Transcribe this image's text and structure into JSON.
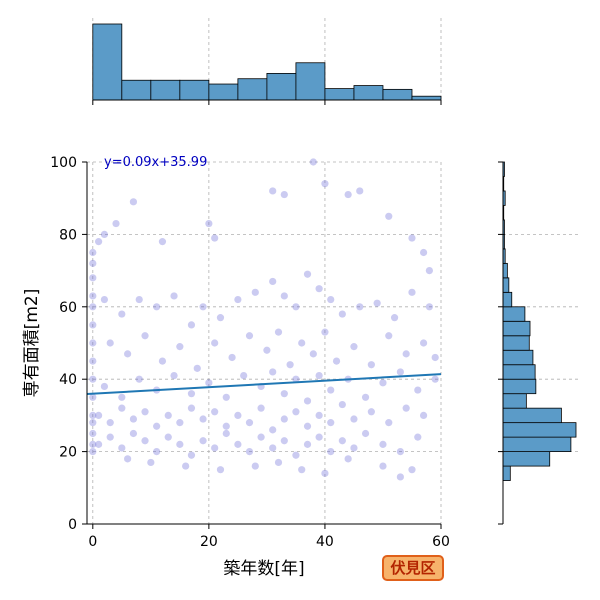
{
  "chart_data": {
    "type": "scatter",
    "xlabel": "築年数[年]",
    "ylabel": "専有面積[m2]",
    "xlim": [
      -1,
      60
    ],
    "ylim": [
      0,
      100
    ],
    "x_ticks": [
      0,
      20,
      40,
      60
    ],
    "y_ticks": [
      0,
      20,
      40,
      60,
      80,
      100
    ],
    "grid": true,
    "point_color": "#6a6ad8",
    "regression": {
      "label": "y=0.09x+35.99",
      "slope": 0.09,
      "intercept": 35.99,
      "color": "#1f77b4",
      "label_color": "#0000c0"
    },
    "marginal_x_hist": {
      "bin_edges": [
        0,
        5,
        10,
        15,
        20,
        25,
        30,
        35,
        40,
        45,
        50,
        55,
        60
      ],
      "relative_heights": [
        1.0,
        0.26,
        0.26,
        0.26,
        0.21,
        0.28,
        0.35,
        0.49,
        0.15,
        0.19,
        0.14,
        0.05
      ],
      "color": "#5b9bc8"
    },
    "marginal_y_hist": {
      "bin_edges": [
        12,
        16,
        20,
        24,
        28,
        32,
        36,
        40,
        44,
        48,
        52,
        56,
        60,
        64,
        68,
        72,
        76,
        80,
        84,
        88,
        92,
        96,
        100
      ],
      "relative_widths": [
        0.1,
        0.64,
        0.93,
        1.0,
        0.8,
        0.32,
        0.45,
        0.44,
        0.41,
        0.36,
        0.37,
        0.3,
        0.12,
        0.08,
        0.06,
        0.03,
        0.02,
        0.02,
        0.01,
        0.03,
        0.01,
        0.02
      ],
      "color": "#5b9bc8"
    },
    "points_sample": [
      [
        0,
        20
      ],
      [
        0,
        22
      ],
      [
        0,
        25
      ],
      [
        0,
        28
      ],
      [
        0,
        30
      ],
      [
        0,
        35
      ],
      [
        0,
        40
      ],
      [
        0,
        45
      ],
      [
        0,
        50
      ],
      [
        0,
        55
      ],
      [
        0,
        60
      ],
      [
        0,
        63
      ],
      [
        0,
        68
      ],
      [
        0,
        72
      ],
      [
        0,
        75
      ],
      [
        1,
        78
      ],
      [
        2,
        80
      ],
      [
        4,
        83
      ],
      [
        7,
        89
      ],
      [
        12,
        78
      ],
      [
        20,
        83
      ],
      [
        21,
        79
      ],
      [
        31,
        92
      ],
      [
        33,
        91
      ],
      [
        38,
        100
      ],
      [
        40,
        94
      ],
      [
        44,
        91
      ],
      [
        46,
        92
      ],
      [
        51,
        85
      ],
      [
        55,
        79
      ],
      [
        57,
        75
      ],
      [
        58,
        70
      ],
      [
        2,
        62
      ],
      [
        5,
        58
      ],
      [
        8,
        62
      ],
      [
        11,
        60
      ],
      [
        14,
        63
      ],
      [
        17,
        55
      ],
      [
        19,
        60
      ],
      [
        22,
        57
      ],
      [
        25,
        62
      ],
      [
        28,
        64
      ],
      [
        31,
        67
      ],
      [
        33,
        63
      ],
      [
        35,
        60
      ],
      [
        37,
        69
      ],
      [
        39,
        65
      ],
      [
        41,
        62
      ],
      [
        43,
        58
      ],
      [
        46,
        60
      ],
      [
        49,
        61
      ],
      [
        52,
        57
      ],
      [
        55,
        64
      ],
      [
        58,
        60
      ],
      [
        3,
        50
      ],
      [
        6,
        47
      ],
      [
        9,
        52
      ],
      [
        12,
        45
      ],
      [
        15,
        49
      ],
      [
        18,
        43
      ],
      [
        21,
        50
      ],
      [
        24,
        46
      ],
      [
        27,
        52
      ],
      [
        30,
        48
      ],
      [
        32,
        53
      ],
      [
        34,
        44
      ],
      [
        36,
        50
      ],
      [
        38,
        47
      ],
      [
        40,
        53
      ],
      [
        42,
        45
      ],
      [
        45,
        49
      ],
      [
        48,
        44
      ],
      [
        51,
        52
      ],
      [
        54,
        47
      ],
      [
        57,
        50
      ],
      [
        59,
        46
      ],
      [
        2,
        38
      ],
      [
        5,
        35
      ],
      [
        8,
        40
      ],
      [
        11,
        37
      ],
      [
        14,
        41
      ],
      [
        17,
        36
      ],
      [
        20,
        39
      ],
      [
        23,
        35
      ],
      [
        26,
        41
      ],
      [
        29,
        38
      ],
      [
        31,
        42
      ],
      [
        33,
        36
      ],
      [
        35,
        40
      ],
      [
        37,
        34
      ],
      [
        39,
        41
      ],
      [
        41,
        37
      ],
      [
        44,
        40
      ],
      [
        47,
        35
      ],
      [
        50,
        39
      ],
      [
        53,
        42
      ],
      [
        56,
        37
      ],
      [
        59,
        40
      ],
      [
        1,
        30
      ],
      [
        3,
        28
      ],
      [
        5,
        32
      ],
      [
        7,
        29
      ],
      [
        9,
        31
      ],
      [
        11,
        27
      ],
      [
        13,
        30
      ],
      [
        15,
        28
      ],
      [
        17,
        32
      ],
      [
        19,
        29
      ],
      [
        21,
        31
      ],
      [
        23,
        27
      ],
      [
        25,
        30
      ],
      [
        27,
        28
      ],
      [
        29,
        32
      ],
      [
        31,
        26
      ],
      [
        33,
        29
      ],
      [
        35,
        31
      ],
      [
        37,
        27
      ],
      [
        39,
        30
      ],
      [
        41,
        28
      ],
      [
        43,
        33
      ],
      [
        45,
        29
      ],
      [
        48,
        31
      ],
      [
        51,
        28
      ],
      [
        54,
        32
      ],
      [
        57,
        30
      ],
      [
        1,
        22
      ],
      [
        3,
        24
      ],
      [
        5,
        21
      ],
      [
        7,
        25
      ],
      [
        9,
        23
      ],
      [
        11,
        20
      ],
      [
        13,
        24
      ],
      [
        15,
        22
      ],
      [
        17,
        19
      ],
      [
        19,
        23
      ],
      [
        21,
        21
      ],
      [
        23,
        25
      ],
      [
        25,
        22
      ],
      [
        27,
        20
      ],
      [
        29,
        24
      ],
      [
        31,
        21
      ],
      [
        33,
        23
      ],
      [
        35,
        19
      ],
      [
        37,
        22
      ],
      [
        39,
        24
      ],
      [
        41,
        20
      ],
      [
        43,
        23
      ],
      [
        45,
        21
      ],
      [
        47,
        25
      ],
      [
        50,
        22
      ],
      [
        53,
        20
      ],
      [
        56,
        24
      ],
      [
        6,
        18
      ],
      [
        10,
        17
      ],
      [
        16,
        16
      ],
      [
        22,
        15
      ],
      [
        28,
        16
      ],
      [
        32,
        17
      ],
      [
        36,
        15
      ],
      [
        40,
        14
      ],
      [
        44,
        18
      ],
      [
        50,
        16
      ],
      [
        53,
        13
      ],
      [
        55,
        15
      ]
    ]
  },
  "ward_badge": "伏見区"
}
